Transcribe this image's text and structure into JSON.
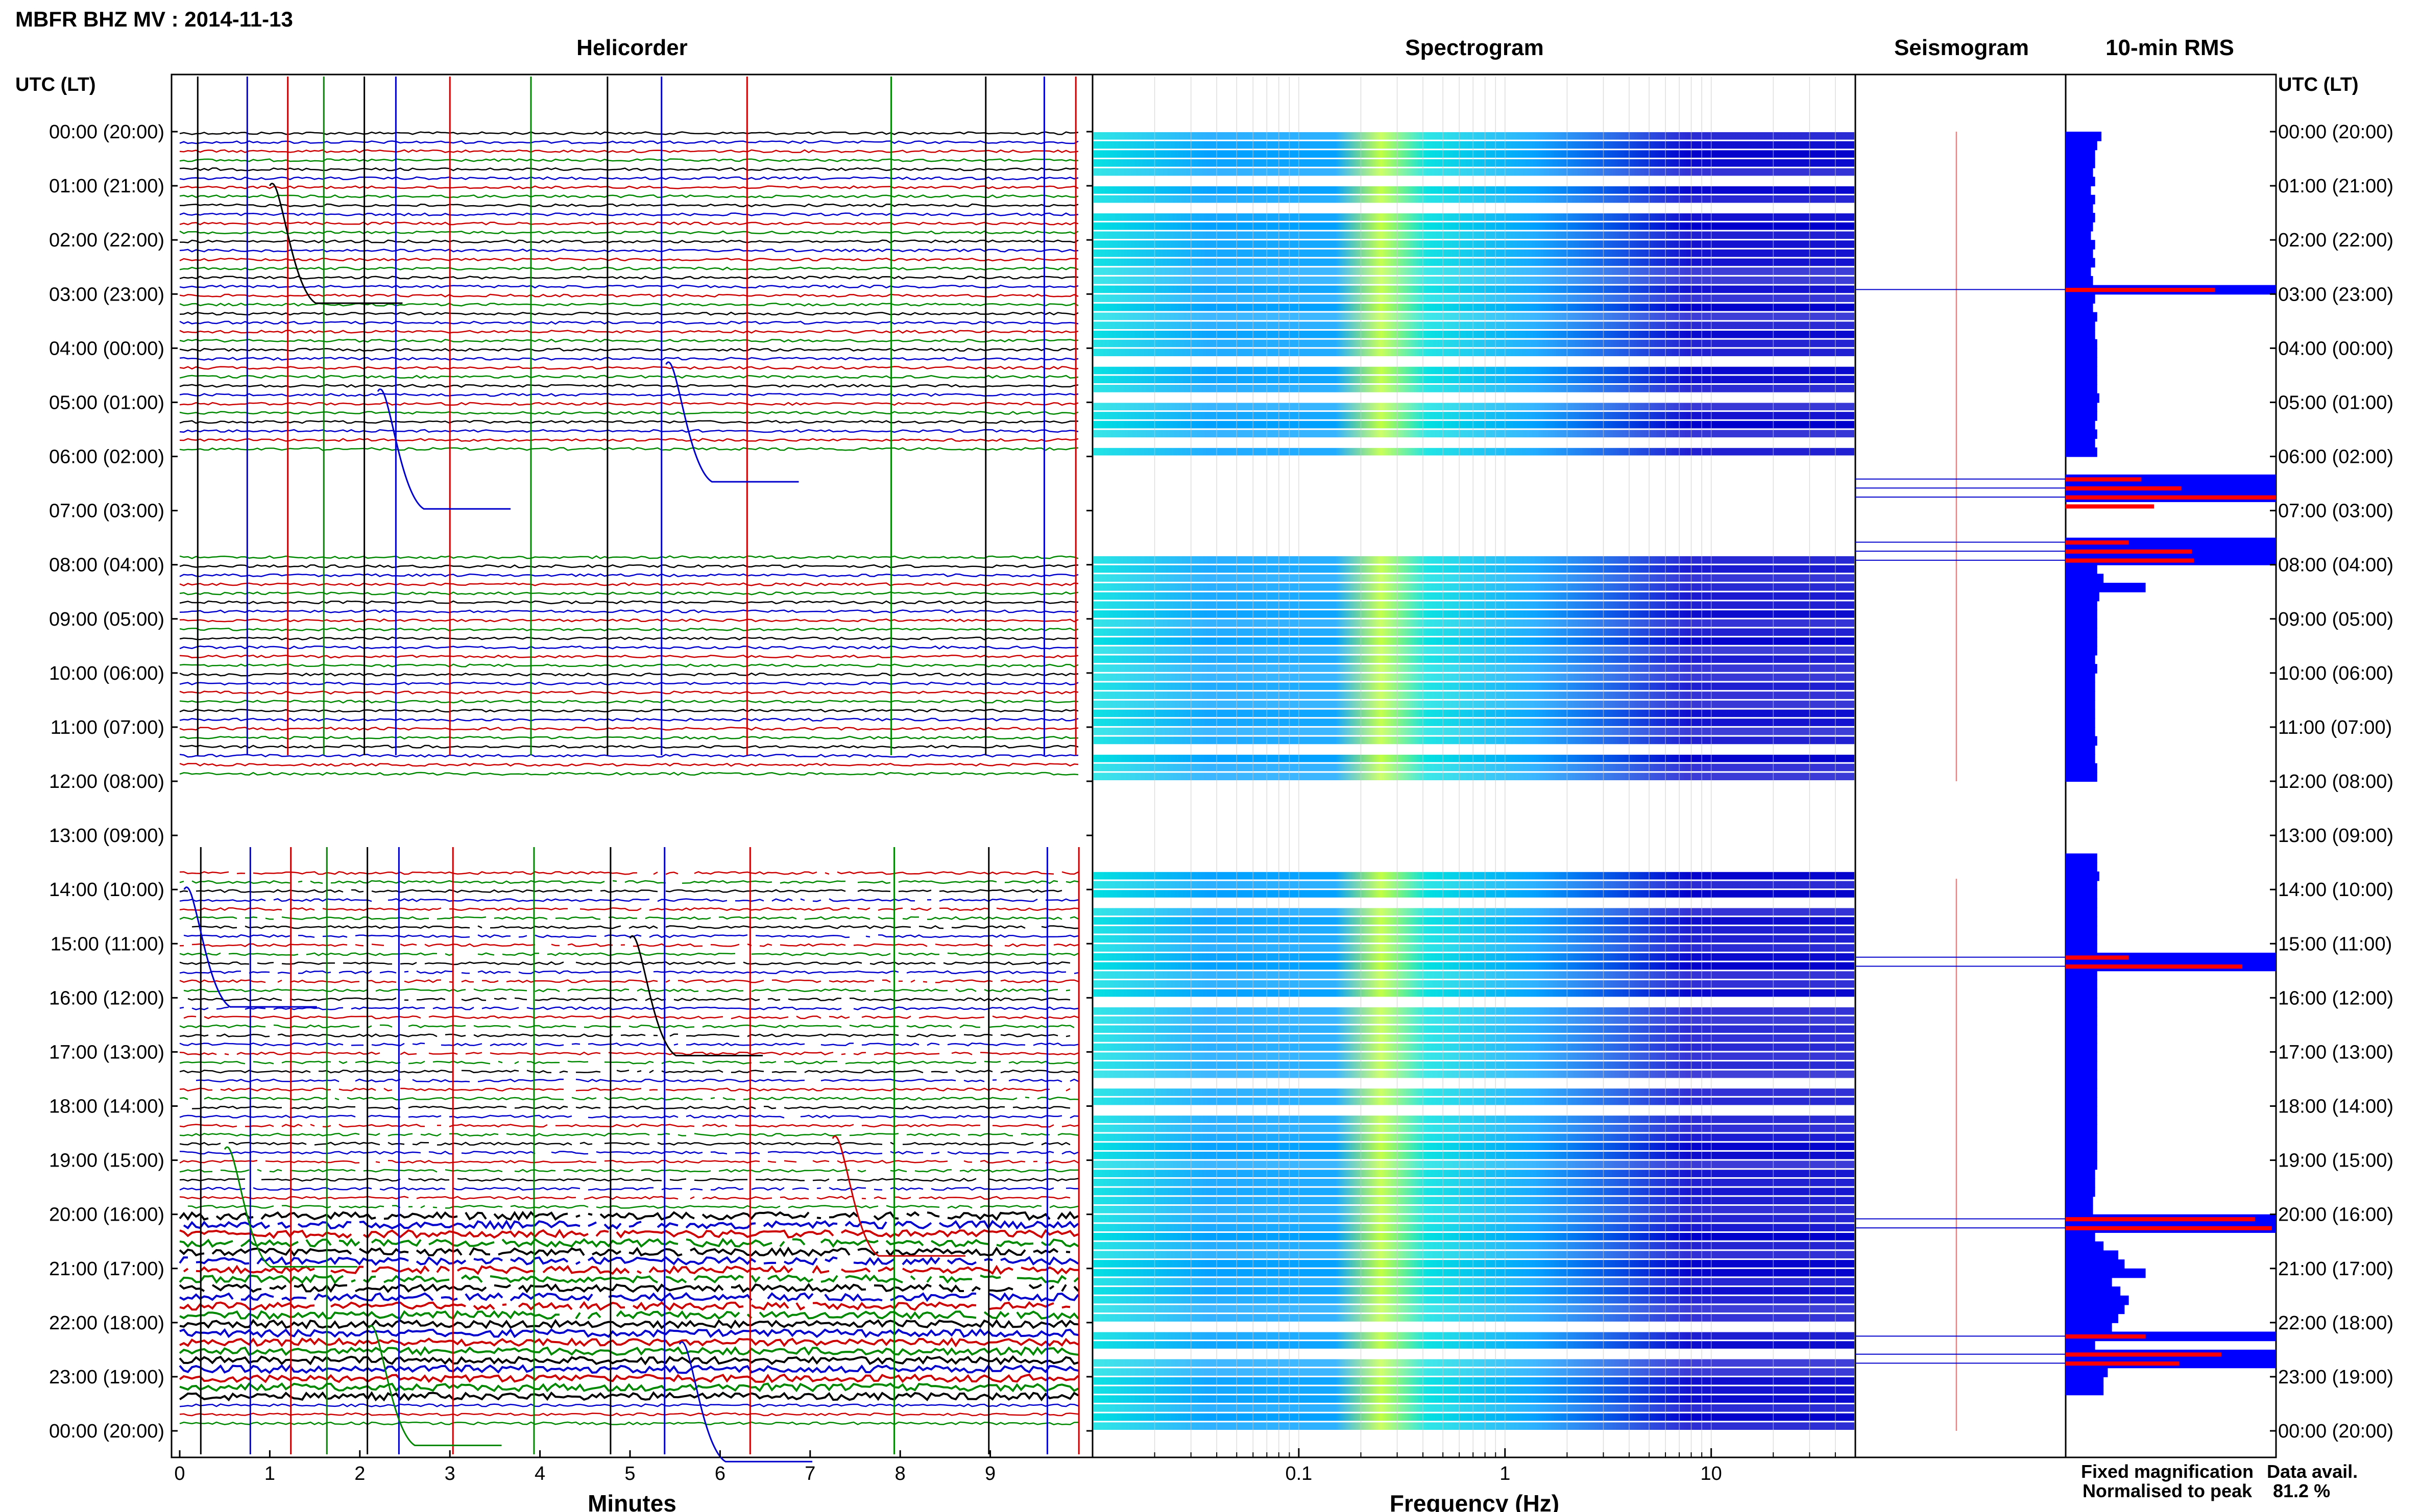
{
  "header": {
    "title": "MBFR BHZ MV : 2014-11-13",
    "left_axis_title": "UTC (LT)",
    "right_axis_title": "UTC (LT)"
  },
  "panels": {
    "helicorder": "Helicorder",
    "spectrogram": "Spectrogram",
    "seismogram": "Seismogram",
    "rms": "10-min RMS"
  },
  "time_labels": [
    "00:00 (20:00)",
    "01:00 (21:00)",
    "02:00 (22:00)",
    "03:00 (23:00)",
    "04:00 (00:00)",
    "05:00 (01:00)",
    "06:00 (02:00)",
    "07:00 (03:00)",
    "08:00 (04:00)",
    "09:00 (05:00)",
    "10:00 (06:00)",
    "11:00 (07:00)",
    "12:00 (08:00)",
    "13:00 (09:00)",
    "14:00 (10:00)",
    "15:00 (11:00)",
    "16:00 (12:00)",
    "17:00 (13:00)",
    "18:00 (14:00)",
    "19:00 (15:00)",
    "20:00 (16:00)",
    "21:00 (17:00)",
    "22:00 (18:00)",
    "23:00 (19:00)",
    "00:00 (20:00)"
  ],
  "chart_data": [
    {
      "type": "line",
      "name": "helicorder",
      "xlabel": "Minutes",
      "x_ticks": [
        "0",
        "1",
        "2",
        "3",
        "4",
        "5",
        "6",
        "7",
        "8",
        "9"
      ],
      "xlim": [
        0,
        10
      ],
      "rows_per_hour": 6,
      "trace_colors": [
        "#000000",
        "#0000cc",
        "#cc0000",
        "#008800"
      ],
      "data_gaps_hours": [
        [
          6.0,
          7.8
        ],
        [
          12.0,
          13.6
        ]
      ]
    },
    {
      "type": "heatmap",
      "name": "spectrogram",
      "xlabel": "Frequency (Hz)",
      "x_scale": "log",
      "x_ticks": [
        "0.1",
        "1",
        "10"
      ],
      "x_tick_values": [
        0.1,
        1,
        10
      ],
      "xlim": [
        0.01,
        50
      ],
      "energy_peak_hz": 0.25,
      "colormap": [
        "#0000cc",
        "#00a0ff",
        "#00e0e0",
        "#c0ff40"
      ]
    },
    {
      "type": "line",
      "name": "seismogram",
      "marker_color": "#ff6666"
    },
    {
      "type": "bar",
      "name": "10-min RMS",
      "orientation": "horizontal",
      "bin_minutes": 10,
      "series": [
        {
          "name": "Fixed magnification",
          "color": "#0000ff",
          "values": [
            0.17,
            0.15,
            0.14,
            0.14,
            0.13,
            0.14,
            0.12,
            0.14,
            0.13,
            0.14,
            0.13,
            0.12,
            0.14,
            0.13,
            0.14,
            0.12,
            0.13,
            1.0,
            0.14,
            0.13,
            0.15,
            0.14,
            0.14,
            0.15,
            0.15,
            0.15,
            0.15,
            0.15,
            0.15,
            0.16,
            0.15,
            0.15,
            0.14,
            0.15,
            0.14,
            0.15,
            0.0,
            0.0,
            1.0,
            1.0,
            1.0,
            0.0,
            0.0,
            0.0,
            0.0,
            1.0,
            1.0,
            1.0,
            0.15,
            0.18,
            0.38,
            0.16,
            0.15,
            0.15,
            0.15,
            0.15,
            0.15,
            0.15,
            0.14,
            0.15,
            0.14,
            0.14,
            0.14,
            0.14,
            0.14,
            0.14,
            0.14,
            0.15,
            0.14,
            0.14,
            0.15,
            0.15,
            0.0,
            0.0,
            0.0,
            0.0,
            0.0,
            0.0,
            0.0,
            0.0,
            0.15,
            0.15,
            0.16,
            0.15,
            0.15,
            0.15,
            0.15,
            0.15,
            0.15,
            0.15,
            0.15,
            1.0,
            1.0,
            0.15,
            0.15,
            0.15,
            0.15,
            0.15,
            0.15,
            0.15,
            0.15,
            0.15,
            0.15,
            0.15,
            0.15,
            0.15,
            0.15,
            0.15,
            0.15,
            0.15,
            0.15,
            0.15,
            0.15,
            0.15,
            0.15,
            0.14,
            0.14,
            0.14,
            0.13,
            0.13,
            1.0,
            1.0,
            0.14,
            0.18,
            0.25,
            0.28,
            0.38,
            0.22,
            0.26,
            0.3,
            0.28,
            0.25,
            0.22,
            1.0,
            0.14,
            1.0,
            1.0,
            0.2,
            0.18,
            0.18
          ]
        },
        {
          "name": "Normalised to peak",
          "color": "#ff0000",
          "values": [
            0,
            0,
            0,
            0,
            0,
            0,
            0,
            0,
            0,
            0,
            0,
            0,
            0,
            0,
            0,
            0,
            0,
            0.71,
            0,
            0,
            0,
            0,
            0,
            0,
            0,
            0,
            0,
            0,
            0,
            0,
            0,
            0,
            0,
            0,
            0,
            0,
            0,
            0,
            0.36,
            0.55,
            1.0,
            0.42,
            0,
            0,
            0,
            0.3,
            0.6,
            0.61,
            0,
            0,
            0,
            0,
            0,
            0,
            0,
            0,
            0,
            0,
            0,
            0,
            0,
            0,
            0,
            0,
            0,
            0,
            0,
            0,
            0,
            0,
            0,
            0,
            0,
            0,
            0,
            0,
            0,
            0,
            0,
            0,
            0,
            0,
            0,
            0,
            0,
            0,
            0,
            0,
            0,
            0,
            0,
            0.3,
            0.84,
            0,
            0,
            0,
            0,
            0,
            0,
            0,
            0,
            0,
            0,
            0,
            0,
            0,
            0,
            0,
            0,
            0,
            0,
            0,
            0,
            0,
            0,
            0,
            0,
            0,
            0,
            0,
            0.9,
            0.98,
            0,
            0,
            0,
            0,
            0,
            0,
            0,
            0,
            0,
            0,
            0,
            0.38,
            0,
            0.74,
            0.54,
            0,
            0,
            0
          ]
        }
      ]
    }
  ],
  "legend": {
    "fixed_label": "Fixed magnification",
    "fixed_color": "#0000ff",
    "normalised_label": "Normalised to peak",
    "normalised_color": "#ff0000"
  },
  "availability": {
    "label": "Data avail.",
    "value": "81.2 %"
  }
}
